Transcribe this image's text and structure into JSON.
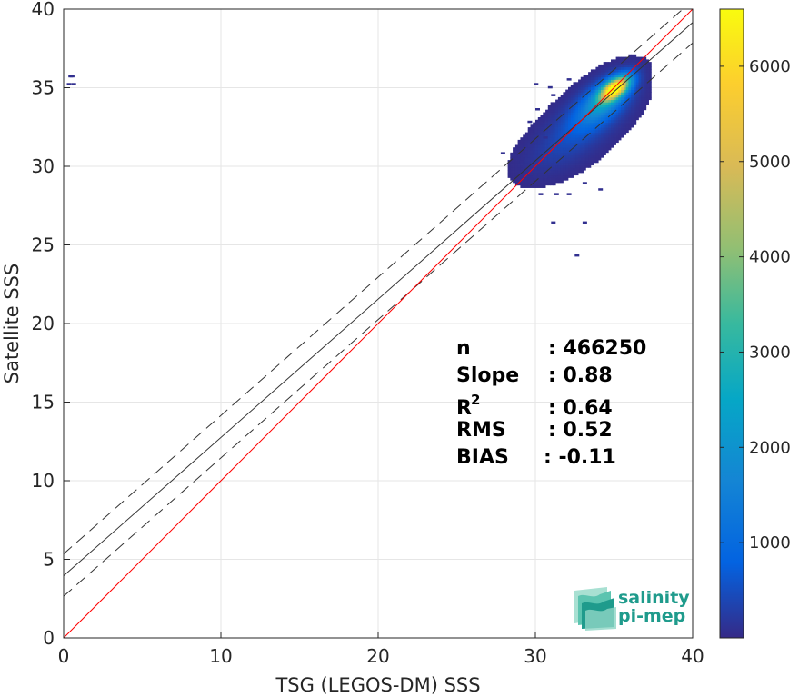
{
  "chart_data": {
    "type": "heatmap",
    "xlabel": "TSG (LEGOS-DM) SSS",
    "ylabel": "Satellite SSS",
    "xlim": [
      0,
      40
    ],
    "ylim": [
      0,
      40
    ],
    "xticks": [
      "0",
      "10",
      "20",
      "30",
      "40"
    ],
    "yticks": [
      "0",
      "5",
      "10",
      "15",
      "20",
      "25",
      "30",
      "35",
      "40"
    ],
    "grid": true,
    "colorbar": {
      "min": 0,
      "max": 6600,
      "ticks": [
        "1000",
        "2000",
        "3000",
        "4000",
        "5000",
        "6000"
      ],
      "colormap": "parula"
    },
    "lines": {
      "identity": {
        "slope": 1.0,
        "intercept": 0.0,
        "color": "#ff0000"
      },
      "regression": {
        "slope": 0.88,
        "intercept": 3.95,
        "color": "#333333"
      },
      "upper_bound": {
        "slope": 0.88,
        "intercept": 5.35,
        "color": "#333333"
      },
      "lower_bound": {
        "slope": 0.88,
        "intercept": 2.65,
        "color": "#333333"
      }
    },
    "stats": [
      {
        "label": "n",
        "value": ": 466250"
      },
      {
        "label": "Slope",
        "value": ": 0.88"
      },
      {
        "label": "R",
        "sup": "2",
        "value": ": 0.64"
      },
      {
        "label": "RMS",
        "value": ": 0.52"
      },
      {
        "label": "BIAS",
        "value": ": -0.11"
      }
    ],
    "density_clusters": [
      {
        "x": 35.0,
        "y": 34.9,
        "sx": 0.6,
        "sy": 0.5,
        "peak": 6500
      },
      {
        "x": 34.3,
        "y": 34.2,
        "sx": 1.0,
        "sy": 0.9,
        "peak": 1800
      },
      {
        "x": 33.5,
        "y": 33.2,
        "sx": 1.4,
        "sy": 1.1,
        "peak": 700
      },
      {
        "x": 31.8,
        "y": 31.3,
        "sx": 1.6,
        "sy": 1.2,
        "peak": 300
      }
    ],
    "sparse_points": [
      [
        0.3,
        35.8
      ],
      [
        0.4,
        35.8
      ],
      [
        0.2,
        35.3
      ],
      [
        0.5,
        35.3
      ],
      [
        29.4,
        29.4
      ],
      [
        30.2,
        28.3
      ],
      [
        31.2,
        28.3
      ],
      [
        32.0,
        28.3
      ],
      [
        31.0,
        26.5
      ],
      [
        33.0,
        26.5
      ],
      [
        32.5,
        24.4
      ],
      [
        29.0,
        30.4
      ],
      [
        28.5,
        30.8
      ],
      [
        27.8,
        30.9
      ],
      [
        30.5,
        31.9
      ],
      [
        31.0,
        34.6
      ],
      [
        30.8,
        35.1
      ],
      [
        29.9,
        35.3
      ],
      [
        32.0,
        35.6
      ],
      [
        30.0,
        33.7
      ],
      [
        29.5,
        32.9
      ],
      [
        33.0,
        29.0
      ],
      [
        34.0,
        28.6
      ]
    ]
  },
  "logo": {
    "line1": "salinity",
    "line2": "pi-mep"
  },
  "colors": {
    "axis": "#262626",
    "grid": "#e6e6e6",
    "identity_line": "#ff0000",
    "regression_line": "#333333",
    "logo_teal": "#1f9b8c"
  }
}
